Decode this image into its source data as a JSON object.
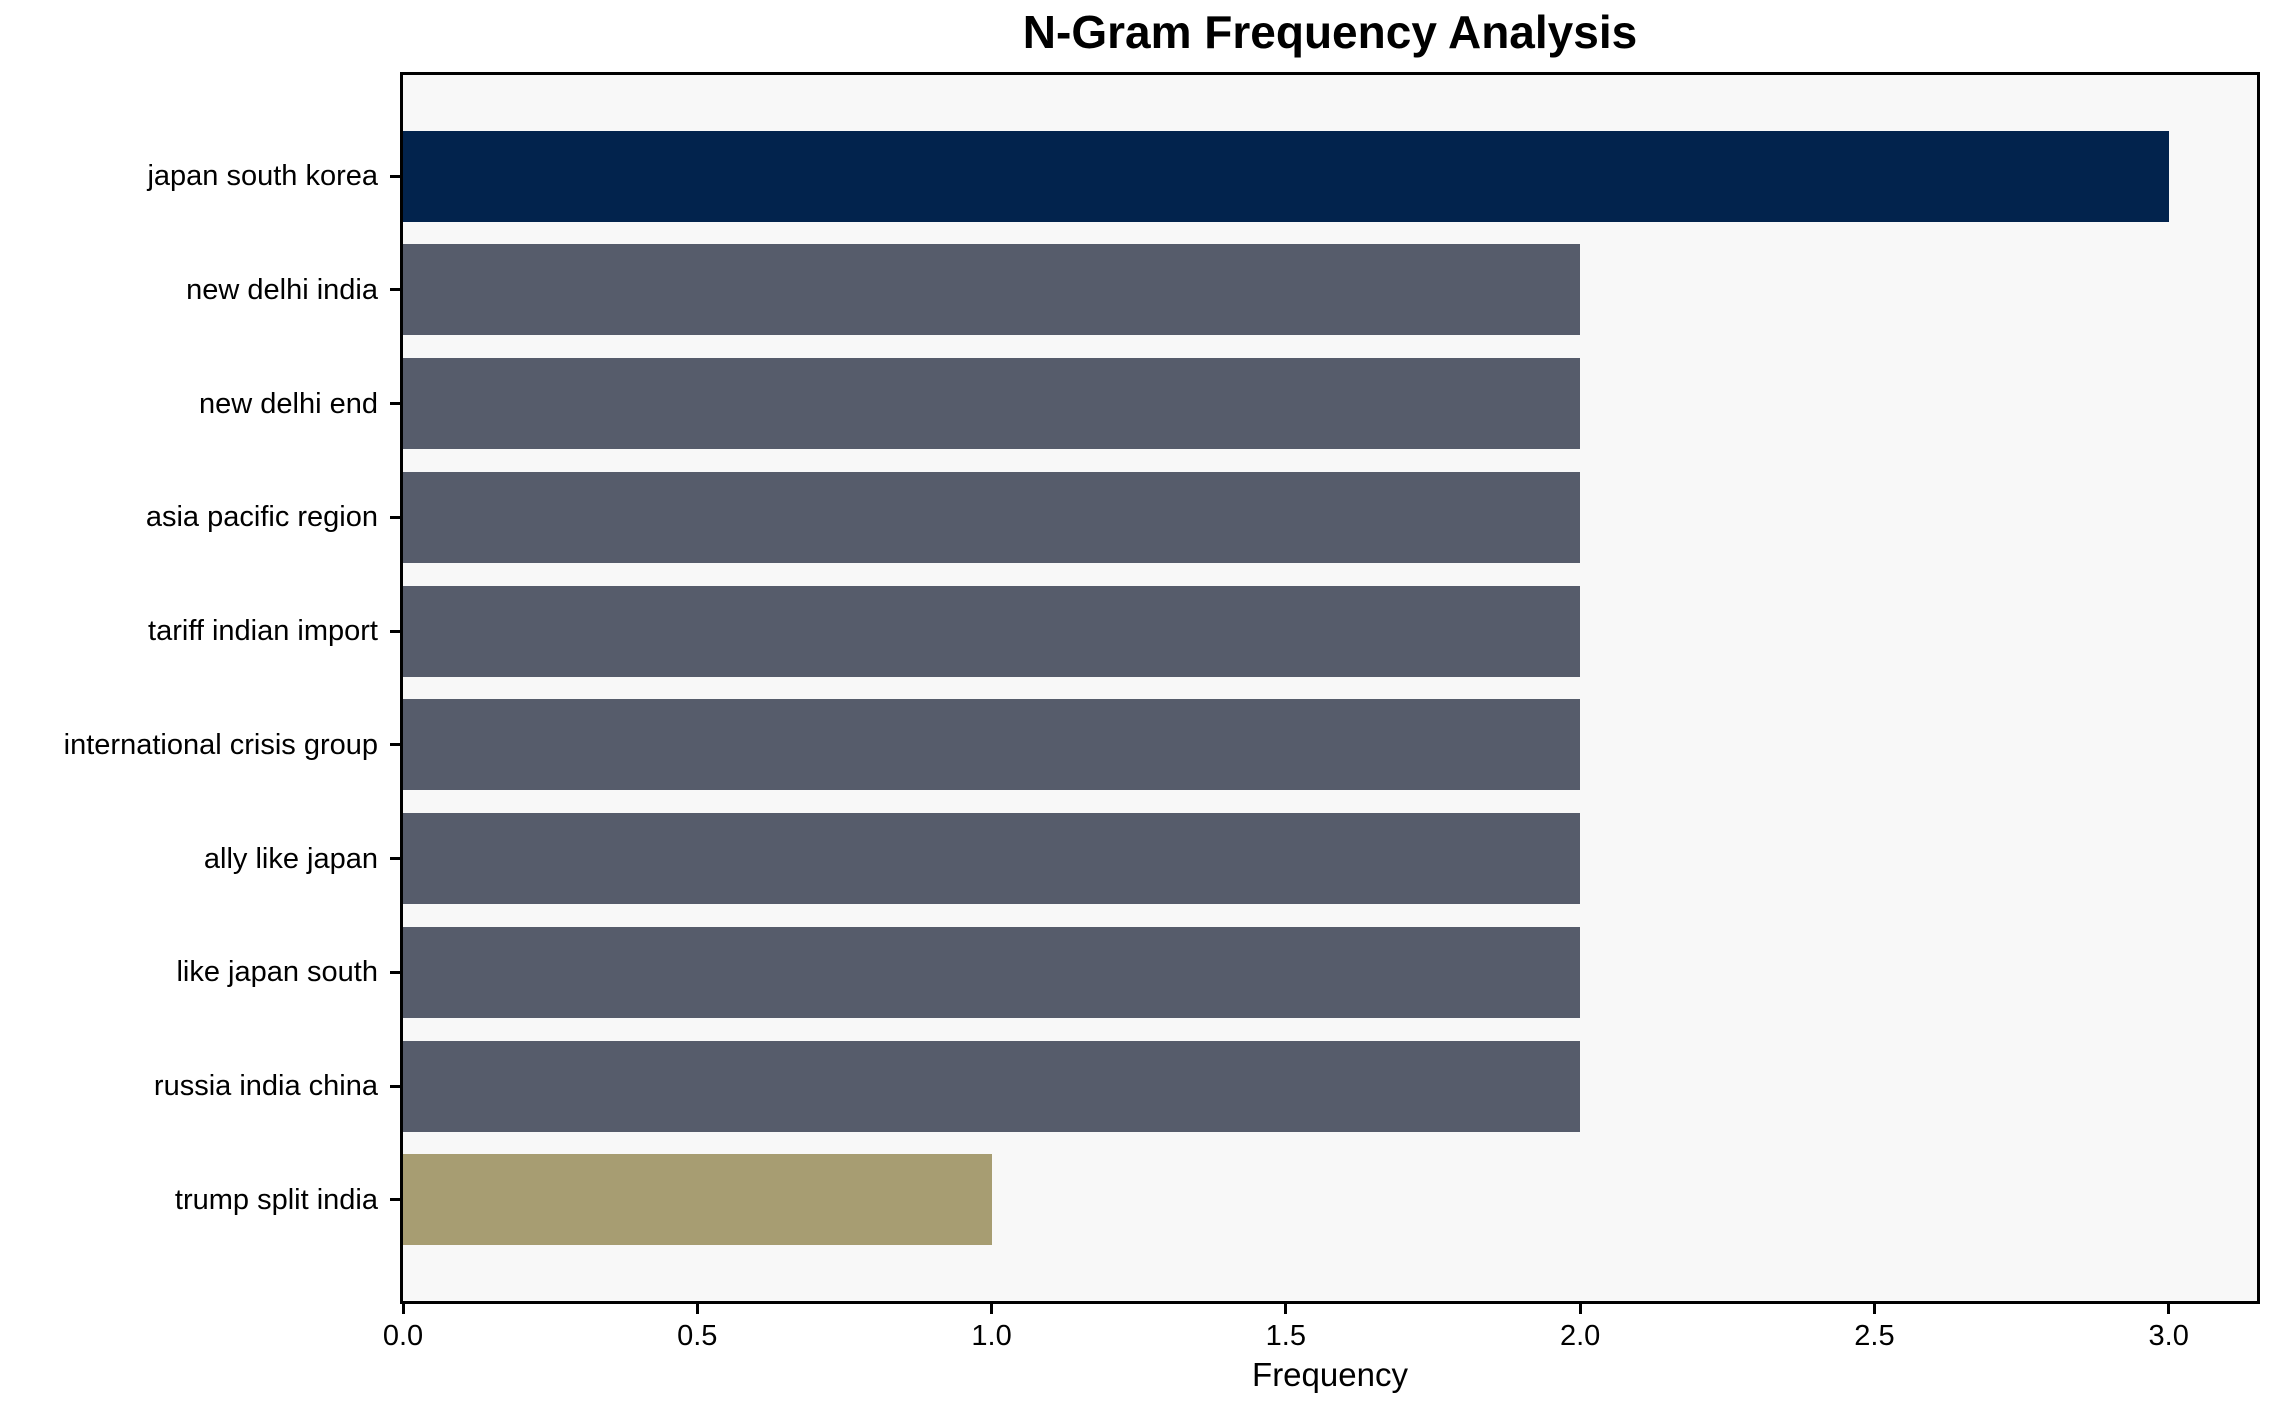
{
  "chart_data": {
    "type": "bar",
    "orientation": "horizontal",
    "title": "N-Gram Frequency Analysis",
    "xlabel": "Frequency",
    "ylabel": "",
    "categories": [
      "japan south korea",
      "new delhi india",
      "new delhi end",
      "asia pacific region",
      "tariff indian import",
      "international crisis group",
      "ally like japan",
      "like japan south",
      "russia india china",
      "trump split india"
    ],
    "values": [
      3,
      2,
      2,
      2,
      2,
      2,
      2,
      2,
      2,
      1
    ],
    "bar_colors": [
      "#02234d",
      "#565c6b",
      "#565c6b",
      "#565c6b",
      "#565c6b",
      "#565c6b",
      "#565c6b",
      "#565c6b",
      "#565c6b",
      "#a79d72"
    ],
    "xtick_values": [
      0,
      0.5,
      1.0,
      1.5,
      2.0,
      2.5,
      3.0
    ],
    "xtick_labels": [
      "0.0",
      "0.5",
      "1.0",
      "1.5",
      "2.0",
      "2.5",
      "3.0"
    ],
    "xlim": [
      0,
      3.15
    ],
    "grid": false,
    "legend": null,
    "colors": {
      "max_bar": "#02234d",
      "mid_bar": "#565c6b",
      "min_bar": "#a79d72",
      "plot_background": "#f8f8f8",
      "figure_background": "#ffffff",
      "axis": "#000000"
    }
  }
}
